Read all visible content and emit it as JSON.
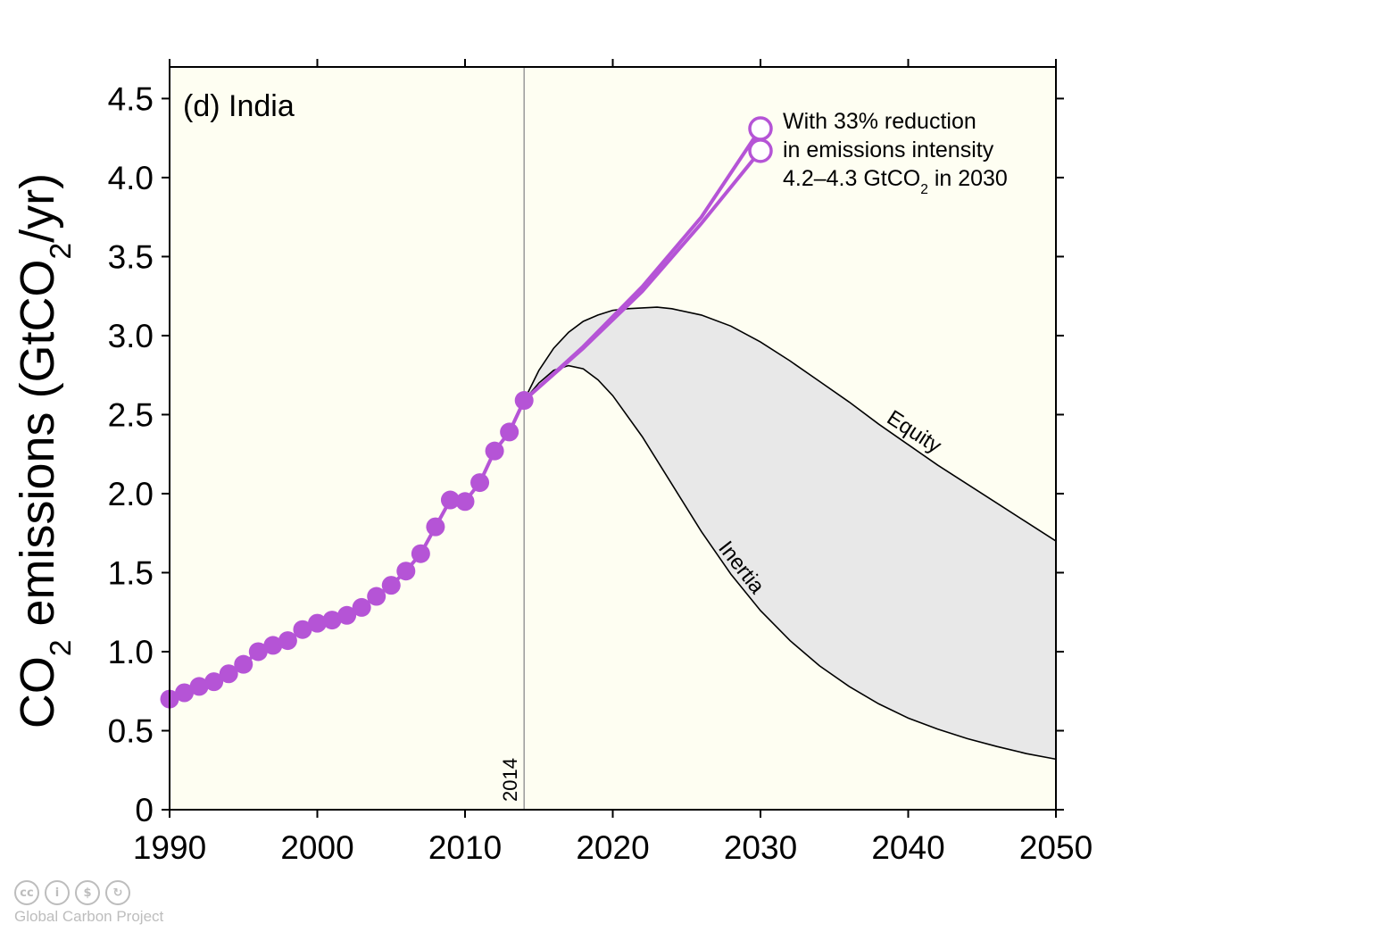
{
  "chart_data": {
    "type": "line",
    "panel_label": "(d) India",
    "ylabel_parts": [
      "CO",
      "2",
      " emissions (GtCO",
      "2",
      "/yr)"
    ],
    "xlim": [
      1990,
      2050
    ],
    "ylim": [
      0,
      4.5
    ],
    "x_ticks": [
      1990,
      2000,
      2010,
      2020,
      2030,
      2040,
      2050
    ],
    "y_ticks": [
      0,
      0.5,
      1.0,
      1.5,
      2.0,
      2.5,
      3.0,
      3.5,
      4.0,
      4.5
    ],
    "y_tick_labels": [
      "0",
      "0.5",
      "1.0",
      "1.5",
      "2.0",
      "2.5",
      "3.0",
      "3.5",
      "4.0",
      "4.5"
    ],
    "vertical_marker": {
      "x": 2014,
      "label": "2014"
    },
    "historical": {
      "x": [
        1990,
        1991,
        1992,
        1993,
        1994,
        1995,
        1996,
        1997,
        1998,
        1999,
        2000,
        2001,
        2002,
        2003,
        2004,
        2005,
        2006,
        2007,
        2008,
        2009,
        2010,
        2011,
        2012,
        2013,
        2014
      ],
      "y": [
        0.7,
        0.74,
        0.78,
        0.81,
        0.86,
        0.92,
        1.0,
        1.04,
        1.07,
        1.14,
        1.18,
        1.2,
        1.23,
        1.28,
        1.35,
        1.42,
        1.51,
        1.62,
        1.79,
        1.96,
        1.95,
        2.07,
        2.27,
        2.39,
        2.59
      ]
    },
    "projections": [
      {
        "x": [
          2014,
          2018,
          2022,
          2026,
          2030
        ],
        "y": [
          2.59,
          2.93,
          3.31,
          3.75,
          4.31
        ]
      },
      {
        "x": [
          2014,
          2018,
          2022,
          2026,
          2030
        ],
        "y": [
          2.59,
          2.92,
          3.28,
          3.71,
          4.17
        ]
      }
    ],
    "equity": {
      "label": "Equity",
      "x": [
        2014,
        2015,
        2016,
        2017,
        2018,
        2019,
        2020,
        2021,
        2022,
        2023,
        2024,
        2026,
        2028,
        2030,
        2032,
        2034,
        2036,
        2038,
        2040,
        2042,
        2044,
        2046,
        2048,
        2050
      ],
      "y": [
        2.59,
        2.78,
        2.92,
        3.02,
        3.09,
        3.13,
        3.16,
        3.17,
        3.175,
        3.18,
        3.17,
        3.13,
        3.06,
        2.96,
        2.84,
        2.71,
        2.58,
        2.44,
        2.31,
        2.18,
        2.06,
        1.94,
        1.82,
        1.7
      ]
    },
    "inertia": {
      "label": "Inertia",
      "x": [
        2014,
        2015,
        2016,
        2017,
        2018,
        2019,
        2020,
        2022,
        2024,
        2026,
        2028,
        2030,
        2032,
        2034,
        2036,
        2038,
        2040,
        2042,
        2044,
        2046,
        2048,
        2050
      ],
      "y": [
        2.59,
        2.7,
        2.78,
        2.81,
        2.79,
        2.72,
        2.62,
        2.36,
        2.06,
        1.76,
        1.49,
        1.26,
        1.07,
        0.91,
        0.78,
        0.67,
        0.58,
        0.51,
        0.45,
        0.4,
        0.355,
        0.32
      ]
    },
    "annotation": {
      "lines": [
        [
          "With 33% reduction"
        ],
        [
          "in emissions intensity"
        ],
        [
          "4.2–4.3 GtCO",
          "2",
          " in 2030"
        ]
      ]
    },
    "grid": false,
    "colors": {
      "series": "#b554d6",
      "band": "#e8e8e8",
      "plot_bg": "#fefef2",
      "marker_line": "#9a9a9a"
    }
  },
  "footer": {
    "icons": [
      "cc-icon",
      "by-icon",
      "nc-icon",
      "sa-icon"
    ],
    "icon_glyphs": [
      "cc",
      "i",
      "$",
      "↻"
    ],
    "credit": "Global Carbon Project"
  }
}
